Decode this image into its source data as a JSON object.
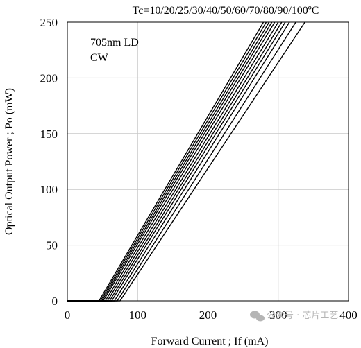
{
  "chart_data": {
    "type": "line",
    "title": "Tc=10/20/25/30/40/50/60/70/80/90/100ºC",
    "annotation": [
      "705nm LD",
      "CW"
    ],
    "xlabel": "Forward Current ; If (mA)",
    "ylabel": "Optical Output Power ; Po (mW)",
    "xlim": [
      0,
      400
    ],
    "ylim": [
      0,
      250
    ],
    "xticks": [
      "0",
      "100",
      "200",
      "300",
      "400"
    ],
    "yticks": [
      "0",
      "50",
      "100",
      "150",
      "200",
      "250"
    ],
    "grid": true,
    "legend": "none",
    "series": [
      {
        "x": [
          0,
          45,
          279
        ],
        "y": [
          0,
          0,
          250
        ]
      },
      {
        "x": [
          0,
          47,
          283
        ],
        "y": [
          0,
          0,
          250
        ]
      },
      {
        "x": [
          0,
          49,
          287
        ],
        "y": [
          0,
          0,
          250
        ]
      },
      {
        "x": [
          0,
          51,
          291
        ],
        "y": [
          0,
          0,
          250
        ]
      },
      {
        "x": [
          0,
          54,
          295
        ],
        "y": [
          0,
          0,
          250
        ]
      },
      {
        "x": [
          0,
          57,
          300
        ],
        "y": [
          0,
          0,
          250
        ]
      },
      {
        "x": [
          0,
          60,
          305
        ],
        "y": [
          0,
          0,
          250
        ]
      },
      {
        "x": [
          0,
          63,
          310
        ],
        "y": [
          0,
          0,
          250
        ]
      },
      {
        "x": [
          0,
          67,
          316
        ],
        "y": [
          0,
          0,
          250
        ]
      },
      {
        "x": [
          0,
          71,
          325
        ],
        "y": [
          0,
          0,
          250
        ]
      },
      {
        "x": [
          0,
          75,
          338
        ],
        "y": [
          0,
          0,
          250
        ]
      }
    ]
  },
  "watermark": "公众号 · 芯片工艺",
  "colors": {
    "line": "#000000",
    "grid": "#c8c8c8",
    "watermark": "#b5b5b5"
  }
}
